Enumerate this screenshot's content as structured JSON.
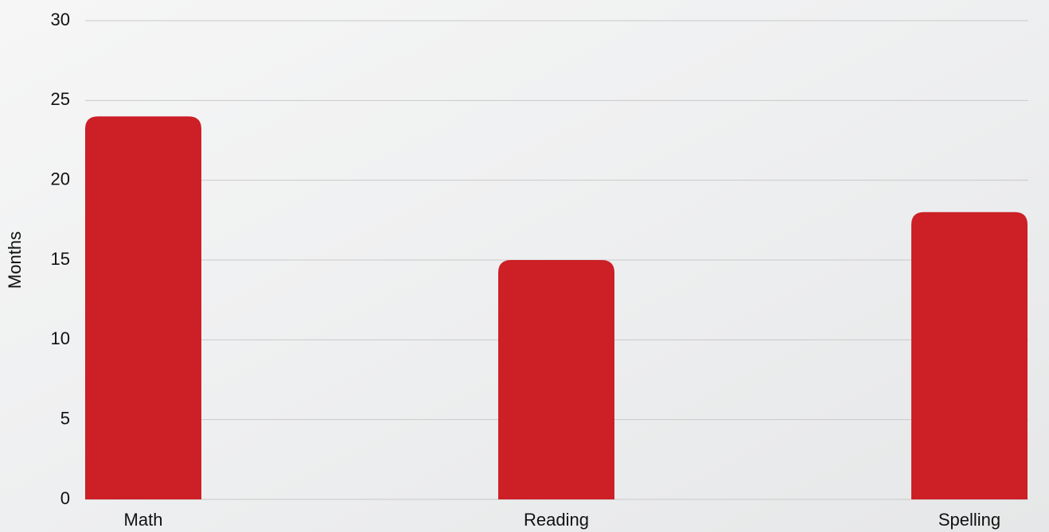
{
  "chart_data": {
    "type": "bar",
    "y_label": "Months",
    "categories": [
      "Math",
      "Reading",
      "Spelling"
    ],
    "values": [
      24,
      15,
      18
    ],
    "color": "#cc1f26",
    "ylim": [
      0,
      30
    ],
    "yticks": [
      0,
      5,
      10,
      15,
      20,
      25,
      30
    ],
    "grid": true
  }
}
